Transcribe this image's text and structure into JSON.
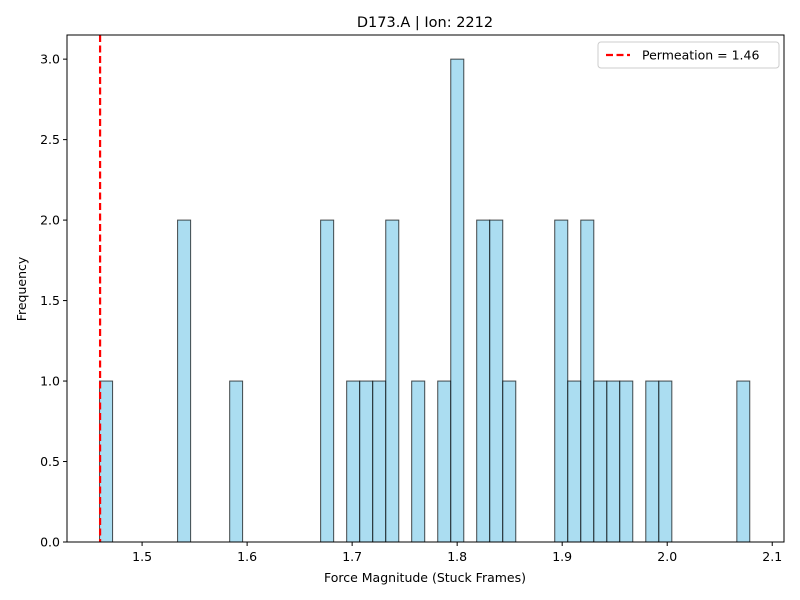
{
  "chart_data": {
    "type": "bar",
    "title": "D173.A | Ion: 2212",
    "xlabel": "Force Magnitude (Stuck Frames)",
    "ylabel": "Frequency",
    "xlim": [
      1.4285,
      2.1112
    ],
    "ylim": [
      0,
      3.15
    ],
    "xticks": [
      1.5,
      1.6,
      1.7,
      1.8,
      1.9,
      2.0,
      2.1
    ],
    "xtick_labels": [
      "1.5",
      "1.6",
      "1.7",
      "1.8",
      "1.9",
      "2.0",
      "2.1"
    ],
    "yticks": [
      0.0,
      0.5,
      1.0,
      1.5,
      2.0,
      2.5,
      3.0
    ],
    "ytick_labels": [
      "0.0",
      "0.5",
      "1.0",
      "1.5",
      "2.0",
      "2.5",
      "3.0"
    ],
    "bins": [
      {
        "x0": 1.4595,
        "x1": 1.4719,
        "count": 1
      },
      {
        "x0": 1.5338,
        "x1": 1.5462,
        "count": 2
      },
      {
        "x0": 1.5834,
        "x1": 1.5957,
        "count": 1
      },
      {
        "x0": 1.67,
        "x1": 1.6824,
        "count": 2
      },
      {
        "x0": 1.6948,
        "x1": 1.7072,
        "count": 1
      },
      {
        "x0": 1.7072,
        "x1": 1.7196,
        "count": 1
      },
      {
        "x0": 1.7196,
        "x1": 1.732,
        "count": 1
      },
      {
        "x0": 1.732,
        "x1": 1.7444,
        "count": 2
      },
      {
        "x0": 1.7567,
        "x1": 1.7691,
        "count": 1
      },
      {
        "x0": 1.7815,
        "x1": 1.7939,
        "count": 1
      },
      {
        "x0": 1.7939,
        "x1": 1.8063,
        "count": 3
      },
      {
        "x0": 1.8186,
        "x1": 1.831,
        "count": 2
      },
      {
        "x0": 1.831,
        "x1": 1.8434,
        "count": 2
      },
      {
        "x0": 1.8434,
        "x1": 1.8558,
        "count": 1
      },
      {
        "x0": 1.8929,
        "x1": 1.9053,
        "count": 2
      },
      {
        "x0": 1.9053,
        "x1": 1.9177,
        "count": 1
      },
      {
        "x0": 1.9177,
        "x1": 1.9301,
        "count": 2
      },
      {
        "x0": 1.9301,
        "x1": 1.9425,
        "count": 1
      },
      {
        "x0": 1.9425,
        "x1": 1.9548,
        "count": 1
      },
      {
        "x0": 1.9548,
        "x1": 1.9672,
        "count": 1
      },
      {
        "x0": 1.9796,
        "x1": 1.992,
        "count": 1
      },
      {
        "x0": 1.992,
        "x1": 2.0044,
        "count": 1
      },
      {
        "x0": 2.0663,
        "x1": 2.0786,
        "count": 1
      }
    ],
    "bar_color": "#87CEEB",
    "bar_edge_color": "#000000",
    "reference_line": {
      "x": 1.46,
      "label": "Permeation = 1.46",
      "color": "#ff0000",
      "style": "dashed"
    },
    "legend_position": "top-right",
    "grid": false
  }
}
